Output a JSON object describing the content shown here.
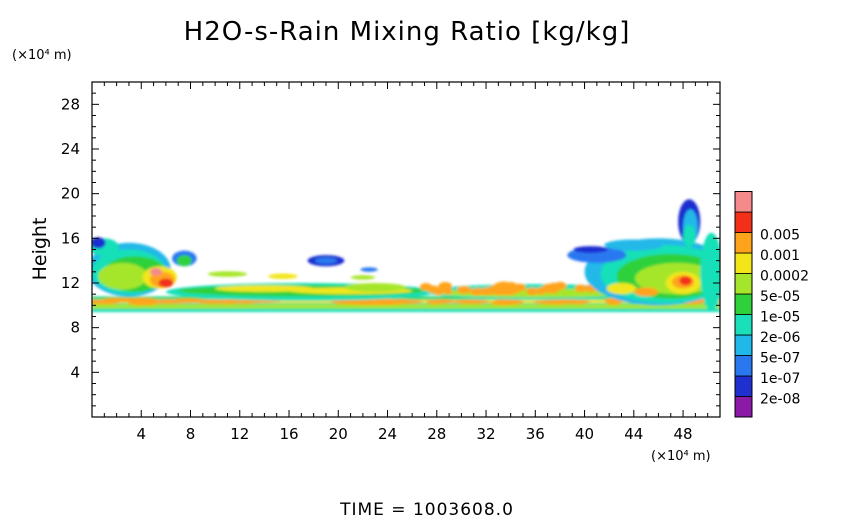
{
  "chart_data": {
    "type": "heatmap",
    "title": "H2O-s-Rain Mixing Ratio [kg/kg]",
    "ylabel": "Height",
    "y_unit": "(×10⁴ m)",
    "x_unit": "(×10⁴ m)",
    "footer": "TIME = 1003608.0",
    "xlim": [
      0,
      51
    ],
    "ylim": [
      0,
      30
    ],
    "x_ticks": [
      "4",
      "8",
      "12",
      "16",
      "20",
      "24",
      "28",
      "32",
      "36",
      "40",
      "44",
      "48"
    ],
    "y_ticks": [
      "4",
      "8",
      "12",
      "16",
      "20",
      "24",
      "28"
    ],
    "legend": {
      "placement": "right",
      "levels": [
        {
          "label": "2e-08",
          "color": "#8b1aa6"
        },
        {
          "label": "1e-07",
          "color": "#1f2fd0"
        },
        {
          "label": "5e-07",
          "color": "#2a78f0"
        },
        {
          "label": "2e-06",
          "color": "#20b8e8"
        },
        {
          "label": "1e-05",
          "color": "#19e0b8"
        },
        {
          "label": "5e-05",
          "color": "#2ed13a"
        },
        {
          "label": "0.0002",
          "color": "#a6e62a"
        },
        {
          "label": "0.001",
          "color": "#f2e61a"
        },
        {
          "label": "0.005",
          "color": "#ffa41a"
        },
        {
          "label": "",
          "color": "#f2301a"
        },
        {
          "label": "",
          "color": "#f58a8a"
        }
      ]
    },
    "regions": [
      {
        "name": "left-cloud",
        "x": [
          0,
          6
        ],
        "y": [
          10.5,
          16
        ],
        "level": 5
      },
      {
        "name": "left-core",
        "x": [
          4,
          7
        ],
        "y": [
          11,
          13.5
        ],
        "level": 9
      },
      {
        "name": "center-band",
        "x": [
          6,
          28
        ],
        "y": [
          10.5,
          12
        ],
        "level": 5
      },
      {
        "name": "upper-blob",
        "x": [
          17,
          21
        ],
        "y": [
          13.5,
          14.5
        ],
        "level": 1
      },
      {
        "name": "right-cloud",
        "x": [
          38,
          51
        ],
        "y": [
          10,
          16
        ],
        "level": 5
      },
      {
        "name": "right-plume",
        "x": [
          47,
          49.5
        ],
        "y": [
          16,
          19.5
        ],
        "level": 3
      },
      {
        "name": "right-core",
        "x": [
          45.5,
          48.5
        ],
        "y": [
          11.5,
          13
        ],
        "level": 9
      },
      {
        "name": "base-layer",
        "x": [
          0,
          51
        ],
        "y": [
          9.5,
          10.5
        ],
        "level": 7
      }
    ]
  }
}
